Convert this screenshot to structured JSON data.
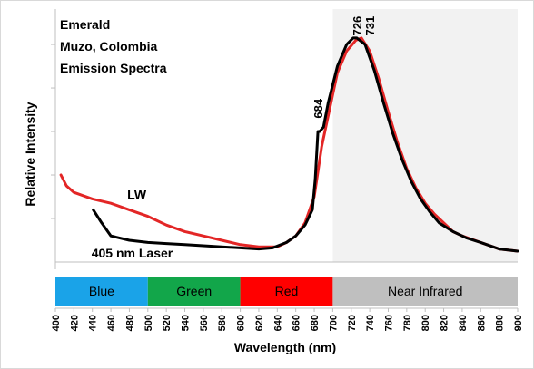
{
  "chart_data": {
    "type": "line",
    "title_lines": [
      "Emerald",
      "Muzo, Colombia",
      "Emission Spectra"
    ],
    "xlabel": "Wavelength (nm)",
    "ylabel": "Relative Intensity",
    "xlim": [
      400,
      900
    ],
    "ylim": [
      0,
      1
    ],
    "x_ticks": [
      400,
      420,
      440,
      460,
      480,
      500,
      520,
      540,
      560,
      580,
      600,
      620,
      640,
      660,
      680,
      700,
      720,
      740,
      760,
      780,
      800,
      820,
      840,
      860,
      880,
      900
    ],
    "y_tick_values": [
      0.2,
      0.4,
      0.6,
      0.8,
      1.0
    ],
    "shaded_region": {
      "x_start": 700,
      "x_end": 900,
      "color": "#f2f2f2"
    },
    "series": [
      {
        "name": "LW",
        "color": "#e32626",
        "points": [
          [
            406,
            0.4
          ],
          [
            412,
            0.35
          ],
          [
            420,
            0.32
          ],
          [
            440,
            0.29
          ],
          [
            460,
            0.27
          ],
          [
            480,
            0.24
          ],
          [
            500,
            0.21
          ],
          [
            520,
            0.17
          ],
          [
            540,
            0.14
          ],
          [
            560,
            0.12
          ],
          [
            580,
            0.1
          ],
          [
            600,
            0.08
          ],
          [
            620,
            0.07
          ],
          [
            640,
            0.07
          ],
          [
            650,
            0.09
          ],
          [
            660,
            0.12
          ],
          [
            670,
            0.18
          ],
          [
            680,
            0.3
          ],
          [
            688,
            0.53
          ],
          [
            695,
            0.67
          ],
          [
            705,
            0.87
          ],
          [
            715,
            0.97
          ],
          [
            725,
            1.02
          ],
          [
            731,
            1.03
          ],
          [
            740,
            0.97
          ],
          [
            750,
            0.84
          ],
          [
            760,
            0.69
          ],
          [
            770,
            0.55
          ],
          [
            780,
            0.43
          ],
          [
            790,
            0.34
          ],
          [
            800,
            0.27
          ],
          [
            810,
            0.22
          ],
          [
            820,
            0.18
          ],
          [
            830,
            0.14
          ],
          [
            840,
            0.12
          ],
          [
            860,
            0.09
          ],
          [
            880,
            0.06
          ],
          [
            900,
            0.05
          ]
        ]
      },
      {
        "name": "405 nm Laser",
        "color": "#000000",
        "points": [
          [
            441,
            0.24
          ],
          [
            450,
            0.18
          ],
          [
            460,
            0.12
          ],
          [
            480,
            0.1
          ],
          [
            500,
            0.09
          ],
          [
            520,
            0.085
          ],
          [
            540,
            0.08
          ],
          [
            560,
            0.075
          ],
          [
            580,
            0.07
          ],
          [
            600,
            0.065
          ],
          [
            620,
            0.06
          ],
          [
            635,
            0.065
          ],
          [
            650,
            0.09
          ],
          [
            660,
            0.12
          ],
          [
            670,
            0.17
          ],
          [
            678,
            0.24
          ],
          [
            681,
            0.38
          ],
          [
            684,
            0.6
          ],
          [
            686,
            0.6
          ],
          [
            690,
            0.62
          ],
          [
            695,
            0.73
          ],
          [
            705,
            0.9
          ],
          [
            715,
            1.0
          ],
          [
            722,
            1.03
          ],
          [
            726,
            1.03
          ],
          [
            735,
            1.0
          ],
          [
            745,
            0.88
          ],
          [
            755,
            0.73
          ],
          [
            765,
            0.59
          ],
          [
            775,
            0.47
          ],
          [
            785,
            0.37
          ],
          [
            795,
            0.29
          ],
          [
            805,
            0.23
          ],
          [
            815,
            0.18
          ],
          [
            830,
            0.14
          ],
          [
            845,
            0.11
          ],
          [
            860,
            0.09
          ],
          [
            880,
            0.06
          ],
          [
            900,
            0.05
          ]
        ]
      }
    ],
    "annotations": [
      {
        "text": "684",
        "x": 684,
        "y": 0.66
      },
      {
        "text": "726",
        "x": 726,
        "y": 1.04
      },
      {
        "text": "731",
        "x": 740,
        "y": 1.04
      }
    ],
    "series_labels": [
      {
        "text": "LW",
        "x": 488,
        "y": 0.29
      },
      {
        "text": "405 nm Laser",
        "x": 483,
        "y": 0.02
      }
    ],
    "color_bands": [
      {
        "label": "Blue",
        "x_start": 400,
        "x_end": 500,
        "color": "#1aa3e8",
        "text_color": "#000000"
      },
      {
        "label": "Green",
        "x_start": 500,
        "x_end": 600,
        "color": "#12a64a",
        "text_color": "#000000"
      },
      {
        "label": "Red",
        "x_start": 600,
        "x_end": 700,
        "color": "#ff0000",
        "text_color": "#000000"
      },
      {
        "label": "Near Infrared",
        "x_start": 700,
        "x_end": 900,
        "color": "#bfbfbf",
        "text_color": "#000000"
      }
    ]
  }
}
